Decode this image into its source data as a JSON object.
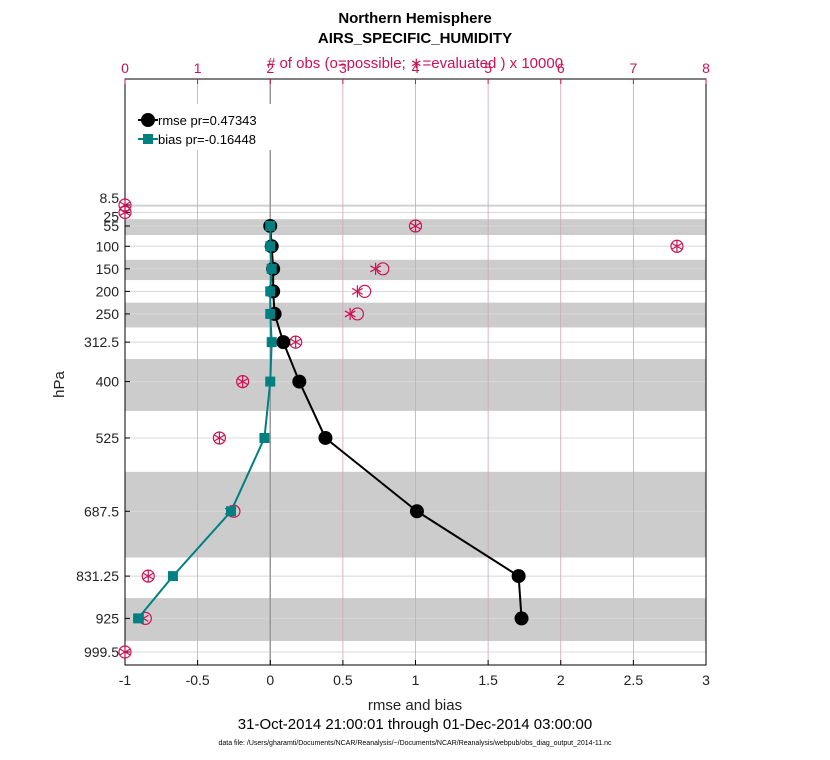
{
  "chart_data": {
    "type": "line",
    "title": "Northern Hemisphere",
    "subtitle": "AIRS_SPECIFIC_HUMIDITY",
    "top_axis_label": "# of obs (o=possible; ∗=evaluated ) x 10000",
    "xlabel": "rmse and bias",
    "ylabel": "hPa",
    "date_range": "31-Oct-2014 21:00:01 through 01-Dec-2014 03:00:00",
    "footnote": "data file: /Users/gharamti/Documents/NCAR/Reanalysis/~/Documents/NCAR/Reanalysis/webpub/obs_diag_output_2014-11.nc",
    "xlim": [
      -1,
      3
    ],
    "top_xlim": [
      0,
      8
    ],
    "x_ticks": [
      -1,
      -0.5,
      0,
      0.5,
      1,
      1.5,
      2,
      2.5,
      3
    ],
    "top_ticks": [
      0,
      1,
      2,
      3,
      4,
      5,
      6,
      7,
      8
    ],
    "y_levels": [
      8.5,
      25,
      55,
      100,
      150,
      200,
      250,
      312.5,
      400,
      525,
      687.5,
      831.25,
      925,
      999.5
    ],
    "y_tick_labels": [
      "8.5",
      "25",
      "55",
      "100",
      "150",
      "200",
      "250",
      "312.5",
      "400",
      "525",
      "687.5",
      "831.25",
      "925",
      "999.5"
    ],
    "grid": "on",
    "legend_position": "top-left",
    "shaded_bands": [
      [
        8.5,
        12
      ],
      [
        40,
        75
      ],
      [
        130,
        175
      ],
      [
        225,
        280
      ],
      [
        350,
        465
      ],
      [
        600,
        790
      ],
      [
        880,
        975
      ]
    ],
    "series": [
      {
        "name": "rmse pr=0.47343",
        "color": "#000000",
        "marker": "circle",
        "points": [
          {
            "p": 55,
            "v": 0.0
          },
          {
            "p": 100,
            "v": 0.01
          },
          {
            "p": 150,
            "v": 0.02
          },
          {
            "p": 200,
            "v": 0.02
          },
          {
            "p": 250,
            "v": 0.03
          },
          {
            "p": 312.5,
            "v": 0.09
          },
          {
            "p": 400,
            "v": 0.2
          },
          {
            "p": 525,
            "v": 0.38
          },
          {
            "p": 687.5,
            "v": 1.01
          },
          {
            "p": 831.25,
            "v": 1.71
          },
          {
            "p": 925,
            "v": 1.73
          }
        ]
      },
      {
        "name": "bias pr=-0.16448",
        "color": "#008080",
        "marker": "square",
        "points": [
          {
            "p": 55,
            "v": 0.0
          },
          {
            "p": 100,
            "v": 0.0
          },
          {
            "p": 150,
            "v": 0.01
          },
          {
            "p": 200,
            "v": 0.0
          },
          {
            "p": 250,
            "v": 0.0
          },
          {
            "p": 312.5,
            "v": 0.01
          },
          {
            "p": 400,
            "v": 0.0
          },
          {
            "p": 525,
            "v": -0.04
          },
          {
            "p": 687.5,
            "v": -0.27
          },
          {
            "p": 831.25,
            "v": -0.67
          },
          {
            "p": 925,
            "v": -0.91
          }
        ]
      }
    ],
    "obs_counts": {
      "color": "#cc1155",
      "note": "values in units of 10000 on top axis",
      "points": [
        {
          "p": 8.5,
          "possible": 0.0,
          "evaluated": 0.0
        },
        {
          "p": 25,
          "possible": 0.0,
          "evaluated": 0.0
        },
        {
          "p": 55,
          "possible": 4.0,
          "evaluated": 4.0
        },
        {
          "p": 100,
          "possible": 7.6,
          "evaluated": 7.6
        },
        {
          "p": 150,
          "possible": 3.55,
          "evaluated": 3.45
        },
        {
          "p": 200,
          "possible": 3.3,
          "evaluated": 3.2
        },
        {
          "p": 250,
          "possible": 3.2,
          "evaluated": 3.1
        },
        {
          "p": 312.5,
          "possible": 2.35,
          "evaluated": 2.35
        },
        {
          "p": 400,
          "possible": 1.62,
          "evaluated": 1.62
        },
        {
          "p": 525,
          "possible": 1.3,
          "evaluated": 1.3
        },
        {
          "p": 687.5,
          "possible": 1.5,
          "evaluated": 1.45
        },
        {
          "p": 831.25,
          "possible": 0.32,
          "evaluated": 0.32
        },
        {
          "p": 925,
          "possible": 0.28,
          "evaluated": 0.25
        },
        {
          "p": 999.5,
          "possible": 0.0,
          "evaluated": 0.0
        }
      ]
    }
  }
}
